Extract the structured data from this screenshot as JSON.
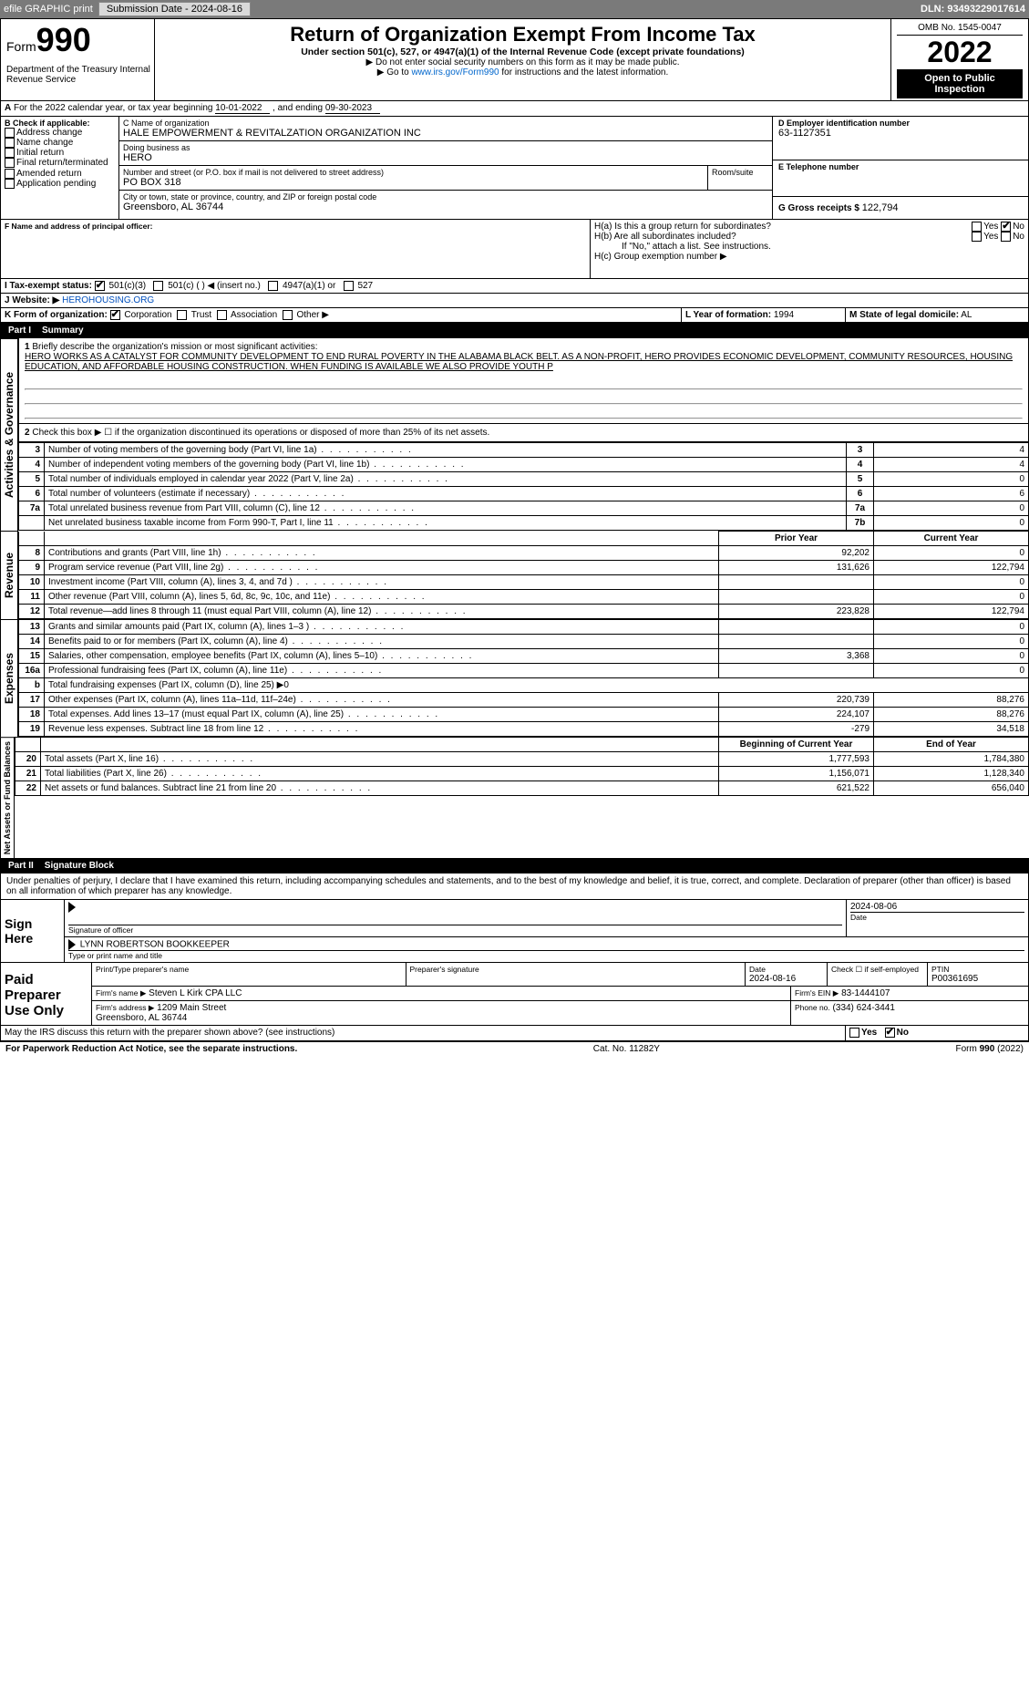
{
  "topbar": {
    "efile": "efile GRAPHIC print",
    "subdate_label": "Submission Date - 2024-08-16",
    "dln": "DLN: 93493229017614"
  },
  "header": {
    "form_label": "Form",
    "form_no": "990",
    "title": "Return of Organization Exempt From Income Tax",
    "sub": "Under section 501(c), 527, or 4947(a)(1) of the Internal Revenue Code (except private foundations)",
    "note1": "▶ Do not enter social security numbers on this form as it may be made public.",
    "note2_pre": "▶ Go to ",
    "note2_link": "www.irs.gov/Form990",
    "note2_post": " for instructions and the latest information.",
    "dept": "Department of the Treasury\nInternal Revenue Service",
    "omb": "OMB No. 1545-0047",
    "year": "2022",
    "open": "Open to Public Inspection"
  },
  "A": {
    "text_pre": "For the 2022 calendar year, or tax year beginning ",
    "begin": "10-01-2022",
    "mid": " , and ending ",
    "end": "09-30-2023"
  },
  "B": {
    "hdr": "B Check if applicable:",
    "items": [
      "Address change",
      "Name change",
      "Initial return",
      "Final return/terminated",
      "Amended return",
      "Application pending"
    ]
  },
  "C": {
    "name_lbl": "C Name of organization",
    "name": "HALE EMPOWERMENT & REVITALZATION ORGANIZATION INC",
    "dba_lbl": "Doing business as",
    "dba": "HERO",
    "addr_lbl": "Number and street (or P.O. box if mail is not delivered to street address)",
    "room_lbl": "Room/suite",
    "addr": "PO BOX 318",
    "city_lbl": "City or town, state or province, country, and ZIP or foreign postal code",
    "city": "Greensboro, AL  36744"
  },
  "D": {
    "lbl": "D Employer identification number",
    "val": "63-1127351"
  },
  "E": {
    "lbl": "E Telephone number",
    "val": ""
  },
  "G": {
    "lbl": "G Gross receipts $",
    "val": "122,794"
  },
  "F": {
    "lbl": "F  Name and address of principal officer:",
    "val": ""
  },
  "H": {
    "a": "H(a)  Is this a group return for subordinates?",
    "b": "H(b)  Are all subordinates included?",
    "b_note": "If \"No,\" attach a list. See instructions.",
    "c": "H(c)  Group exemption number ▶",
    "yes": "Yes",
    "no": "No"
  },
  "I": {
    "lbl": "I   Tax-exempt status:",
    "opts": [
      "501(c)(3)",
      "501(c) (   ) ◀ (insert no.)",
      "4947(a)(1) or",
      "527"
    ]
  },
  "J": {
    "lbl": "J   Website: ▶",
    "val": "HEROHOUSING.ORG"
  },
  "K": {
    "lbl": "K Form of organization:",
    "opts": [
      "Corporation",
      "Trust",
      "Association",
      "Other ▶"
    ]
  },
  "L": {
    "lbl": "L Year of formation:",
    "val": "1994"
  },
  "M": {
    "lbl": "M State of legal domicile:",
    "val": "AL"
  },
  "part1": {
    "num": "Part I",
    "title": "Summary"
  },
  "summary": {
    "q1_lbl": "1",
    "q1_text": "Briefly describe the organization's mission or most significant activities:",
    "q1_val": "HERO WORKS AS A CATALYST FOR COMMUNITY DEVELOPMENT TO END RURAL POVERTY IN THE ALABAMA BLACK BELT. AS A NON-PROFIT, HERO PROVIDES ECONOMIC DEVELOPMENT, COMMUNITY RESOURCES, HOUSING EDUCATION, AND AFFORDABLE HOUSING CONSTRUCTION. WHEN FUNDING IS AVAILABLE WE ALSO PROVIDE YOUTH P",
    "q2": "Check this box ▶ ☐ if the organization discontinued its operations or disposed of more than 25% of its net assets."
  },
  "gov_rows": [
    {
      "n": "3",
      "t": "Number of voting members of the governing body (Part VI, line 1a)",
      "box": "3",
      "v": "4"
    },
    {
      "n": "4",
      "t": "Number of independent voting members of the governing body (Part VI, line 1b)",
      "box": "4",
      "v": "4"
    },
    {
      "n": "5",
      "t": "Total number of individuals employed in calendar year 2022 (Part V, line 2a)",
      "box": "5",
      "v": "0"
    },
    {
      "n": "6",
      "t": "Total number of volunteers (estimate if necessary)",
      "box": "6",
      "v": "6"
    },
    {
      "n": "7a",
      "t": "Total unrelated business revenue from Part VIII, column (C), line 12",
      "box": "7a",
      "v": "0"
    },
    {
      "n": "",
      "t": "Net unrelated business taxable income from Form 990-T, Part I, line 11",
      "box": "7b",
      "v": "0"
    }
  ],
  "col_hdrs": {
    "prior": "Prior Year",
    "current": "Current Year"
  },
  "revenue_rows": [
    {
      "n": "8",
      "t": "Contributions and grants (Part VIII, line 1h)",
      "p": "92,202",
      "c": "0"
    },
    {
      "n": "9",
      "t": "Program service revenue (Part VIII, line 2g)",
      "p": "131,626",
      "c": "122,794"
    },
    {
      "n": "10",
      "t": "Investment income (Part VIII, column (A), lines 3, 4, and 7d )",
      "p": "",
      "c": "0"
    },
    {
      "n": "11",
      "t": "Other revenue (Part VIII, column (A), lines 5, 6d, 8c, 9c, 10c, and 11e)",
      "p": "",
      "c": "0"
    },
    {
      "n": "12",
      "t": "Total revenue—add lines 8 through 11 (must equal Part VIII, column (A), line 12)",
      "p": "223,828",
      "c": "122,794"
    }
  ],
  "expense_rows": [
    {
      "n": "13",
      "t": "Grants and similar amounts paid (Part IX, column (A), lines 1–3 )",
      "p": "",
      "c": "0"
    },
    {
      "n": "14",
      "t": "Benefits paid to or for members (Part IX, column (A), line 4)",
      "p": "",
      "c": "0"
    },
    {
      "n": "15",
      "t": "Salaries, other compensation, employee benefits (Part IX, column (A), lines 5–10)",
      "p": "3,368",
      "c": "0"
    },
    {
      "n": "16a",
      "t": "Professional fundraising fees (Part IX, column (A), line 11e)",
      "p": "",
      "c": "0"
    },
    {
      "n": "b",
      "t": "Total fundraising expenses (Part IX, column (D), line 25) ▶0",
      "p": "—",
      "c": "—"
    },
    {
      "n": "17",
      "t": "Other expenses (Part IX, column (A), lines 11a–11d, 11f–24e)",
      "p": "220,739",
      "c": "88,276"
    },
    {
      "n": "18",
      "t": "Total expenses. Add lines 13–17 (must equal Part IX, column (A), line 25)",
      "p": "224,107",
      "c": "88,276"
    },
    {
      "n": "19",
      "t": "Revenue less expenses. Subtract line 18 from line 12",
      "p": "-279",
      "c": "34,518"
    }
  ],
  "net_hdrs": {
    "begin": "Beginning of Current Year",
    "end": "End of Year"
  },
  "net_rows": [
    {
      "n": "20",
      "t": "Total assets (Part X, line 16)",
      "p": "1,777,593",
      "c": "1,784,380"
    },
    {
      "n": "21",
      "t": "Total liabilities (Part X, line 26)",
      "p": "1,156,071",
      "c": "1,128,340"
    },
    {
      "n": "22",
      "t": "Net assets or fund balances. Subtract line 21 from line 20",
      "p": "621,522",
      "c": "656,040"
    }
  ],
  "part2": {
    "num": "Part II",
    "title": "Signature Block"
  },
  "sig": {
    "penalty": "Under penalties of perjury, I declare that I have examined this return, including accompanying schedules and statements, and to the best of my knowledge and belief, it is true, correct, and complete. Declaration of preparer (other than officer) is based on all information of which preparer has any knowledge.",
    "sign_here": "Sign Here",
    "sig_officer": "Signature of officer",
    "date": "Date",
    "date_val": "2024-08-06",
    "name_title": "Type or print name and title",
    "name_val": "LYNN ROBERTSON  BOOKKEEPER",
    "paid": "Paid Preparer Use Only",
    "pt_name_lbl": "Print/Type preparer's name",
    "pt_sig_lbl": "Preparer's signature",
    "pt_date_lbl": "Date",
    "pt_date": "2024-08-16",
    "pt_check": "Check ☐ if self-employed",
    "ptin_lbl": "PTIN",
    "ptin": "P00361695",
    "firm_name_lbl": "Firm's name   ▶",
    "firm_name": "Steven L Kirk CPA LLC",
    "firm_ein_lbl": "Firm's EIN ▶",
    "firm_ein": "83-1444107",
    "firm_addr_lbl": "Firm's address ▶",
    "firm_addr": "1209 Main Street\nGreensboro, AL  36744",
    "phone_lbl": "Phone no.",
    "phone": "(334) 624-3441",
    "discuss": "May the IRS discuss this return with the preparer shown above? (see instructions)"
  },
  "footer": {
    "l": "For Paperwork Reduction Act Notice, see the separate instructions.",
    "m": "Cat. No. 11282Y",
    "r": "Form 990 (2022)"
  },
  "sidetabs": {
    "gov": "Activities & Governance",
    "rev": "Revenue",
    "exp": "Expenses",
    "net": "Net Assets or Fund Balances"
  },
  "colors": {
    "topbar_bg": "#7a7a7a",
    "link": "#004fbd",
    "black": "#000000"
  }
}
